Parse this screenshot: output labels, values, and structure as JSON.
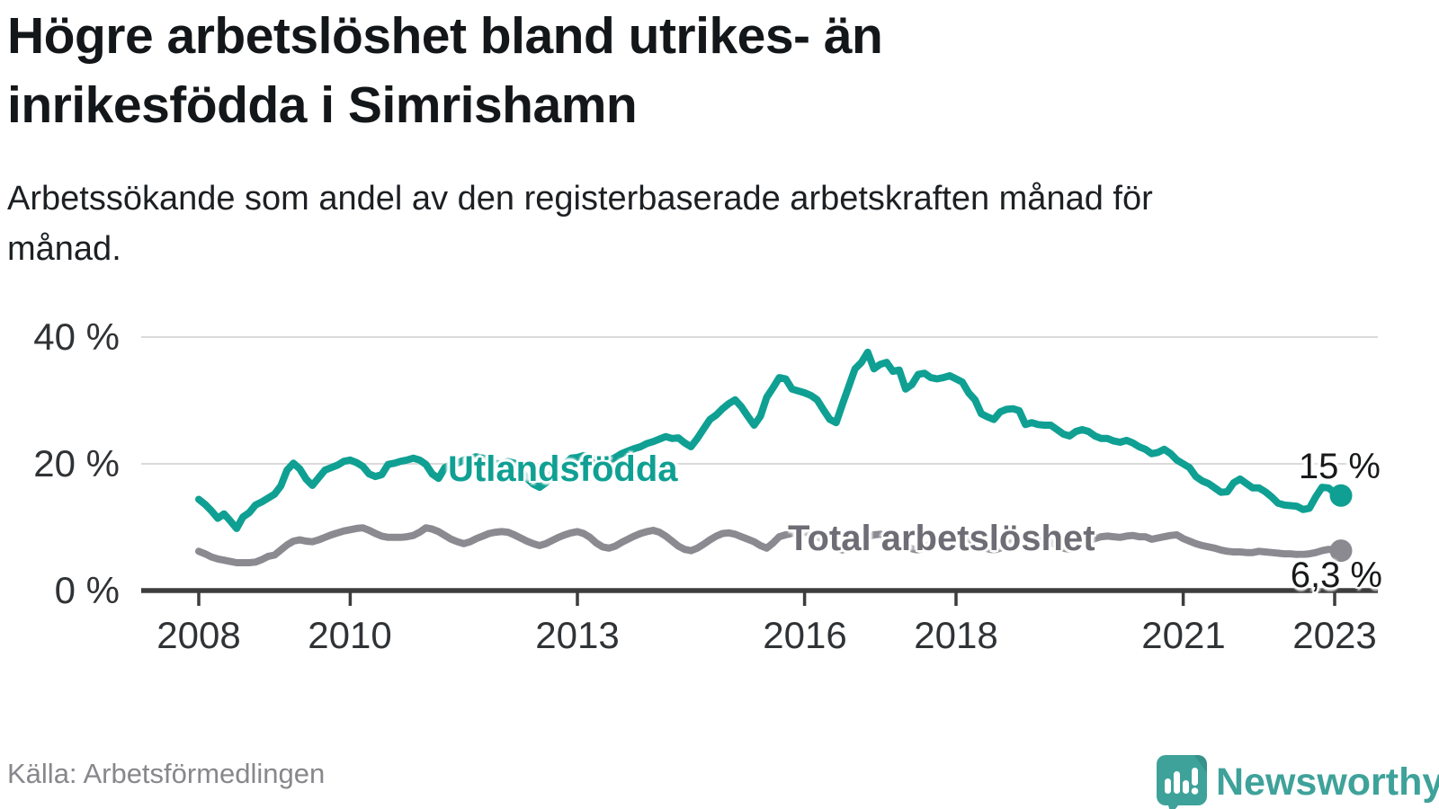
{
  "header": {
    "title": "Högre arbetslöshet bland utrikes- än inrikesfödda i Simrishamn",
    "subtitle": "Arbetssökande som andel av den registerbaserade arbetskraften månad för månad."
  },
  "footer": {
    "source": "Källa: Arbetsförmedlingen",
    "brand": "Newsworthy",
    "brand_color": "#3ea29a",
    "logo_icon": "newsworthy-speech-bubble-chart-icon"
  },
  "chart_data": {
    "type": "line",
    "title": "Högre arbetslöshet bland utrikes- än inrikesfödda i Simrishamn",
    "subtitle": "Arbetssökande som andel av den registerbaserade arbetskraften månad för månad.",
    "x_unit": "month",
    "x_start": "2008-01",
    "x_end": "2023-02",
    "ylim": [
      0,
      42
    ],
    "grid": "horizontal",
    "legend": "inline-labels",
    "axis_color": "#3d3d3d",
    "grid_color": "#dadada",
    "y_ticks": [
      {
        "value": 0,
        "label": "0 %"
      },
      {
        "value": 20,
        "label": "20 %"
      },
      {
        "value": 40,
        "label": "40 %"
      }
    ],
    "x_ticks": [
      {
        "year": 2008,
        "label": "2008"
      },
      {
        "year": 2010,
        "label": "2010"
      },
      {
        "year": 2013,
        "label": "2013"
      },
      {
        "year": 2016,
        "label": "2016"
      },
      {
        "year": 2018,
        "label": "2018"
      },
      {
        "year": 2021,
        "label": "2021"
      },
      {
        "year": 2023,
        "label": "2023"
      }
    ],
    "series": [
      {
        "id": "utlandsfodda",
        "name": "Utlandsfödda",
        "color": "#0fa093",
        "end_label": "15 %",
        "end_value": 15.0,
        "values": [
          14.4,
          13.6,
          12.6,
          11.4,
          12.1,
          11.0,
          9.8,
          11.6,
          12.3,
          13.5,
          14.0,
          14.6,
          15.2,
          16.5,
          19.0,
          20.1,
          19.2,
          17.6,
          16.6,
          17.8,
          19.0,
          19.4,
          19.8,
          20.4,
          20.6,
          20.2,
          19.6,
          18.4,
          18.0,
          18.3,
          19.9,
          20.1,
          20.4,
          20.6,
          20.9,
          20.6,
          19.9,
          18.4,
          17.7,
          19.4,
          19.9,
          20.1,
          20.6,
          20.9,
          21.1,
          20.9,
          20.6,
          20.1,
          19.9,
          20.4,
          20.1,
          19.0,
          17.7,
          16.8,
          16.3,
          17.0,
          18.5,
          19.4,
          19.9,
          20.9,
          21.0,
          21.3,
          21.0,
          20.5,
          20.2,
          20.5,
          21.0,
          21.6,
          22.0,
          22.4,
          22.7,
          23.2,
          23.5,
          23.9,
          24.3,
          24.0,
          24.1,
          23.3,
          22.7,
          24.0,
          25.5,
          27.0,
          27.7,
          28.7,
          29.5,
          30.1,
          29.0,
          27.5,
          26.1,
          27.5,
          30.5,
          32.0,
          33.6,
          33.4,
          31.8,
          31.5,
          31.2,
          30.8,
          30.1,
          28.5,
          27.0,
          26.5,
          29.4,
          32.2,
          35.0,
          36.0,
          37.6,
          35.0,
          35.7,
          36.0,
          34.6,
          34.8,
          31.8,
          32.5,
          34.1,
          34.3,
          33.6,
          33.4,
          33.6,
          33.9,
          33.4,
          32.9,
          31.2,
          30.1,
          27.9,
          27.4,
          27.0,
          28.2,
          28.6,
          28.7,
          28.4,
          26.2,
          26.5,
          26.2,
          26.1,
          26.1,
          25.4,
          24.7,
          24.4,
          25.1,
          25.4,
          25.1,
          24.4,
          24.0,
          24.0,
          23.6,
          23.4,
          23.7,
          23.3,
          22.7,
          22.3,
          21.6,
          21.8,
          22.3,
          21.6,
          20.6,
          20.0,
          19.4,
          18.0,
          17.3,
          16.9,
          16.2,
          15.5,
          15.6,
          17.0,
          17.6,
          16.9,
          16.2,
          16.2,
          15.6,
          14.8,
          13.8,
          13.5,
          13.4,
          13.3,
          12.8,
          13.0,
          14.8,
          16.3,
          16.2,
          15.4,
          15.0
        ]
      },
      {
        "id": "total",
        "name": "Total arbetslöshet",
        "color": "#8b8a91",
        "end_label": "6,3 %",
        "end_value": 6.3,
        "values": [
          6.2,
          5.8,
          5.3,
          5.0,
          4.8,
          4.6,
          4.4,
          4.4,
          4.4,
          4.5,
          4.9,
          5.4,
          5.6,
          6.4,
          7.2,
          7.8,
          8.0,
          7.8,
          7.7,
          8.0,
          8.4,
          8.8,
          9.1,
          9.4,
          9.6,
          9.8,
          9.9,
          9.5,
          9.0,
          8.6,
          8.4,
          8.4,
          8.4,
          8.5,
          8.7,
          9.2,
          9.9,
          9.7,
          9.3,
          8.7,
          8.1,
          7.7,
          7.4,
          7.7,
          8.2,
          8.6,
          9.0,
          9.2,
          9.3,
          9.2,
          8.8,
          8.3,
          7.8,
          7.4,
          7.1,
          7.4,
          7.9,
          8.4,
          8.8,
          9.1,
          9.3,
          9.0,
          8.4,
          7.5,
          6.9,
          6.7,
          7.0,
          7.6,
          8.1,
          8.6,
          9.0,
          9.3,
          9.5,
          9.2,
          8.6,
          7.8,
          7.0,
          6.5,
          6.3,
          6.7,
          7.3,
          8.0,
          8.6,
          9.0,
          9.1,
          8.9,
          8.5,
          8.1,
          7.7,
          7.1,
          6.7,
          7.5,
          8.5,
          8.8,
          9.0,
          9.2,
          9.2,
          9.0,
          8.6,
          8.0,
          7.3,
          6.7,
          6.4,
          6.8,
          7.4,
          8.0,
          8.5,
          8.8,
          8.9,
          8.7,
          8.3,
          7.7,
          7.1,
          6.6,
          6.4,
          6.8,
          7.4,
          7.9,
          8.4,
          8.7,
          8.8,
          8.6,
          8.2,
          7.6,
          7.0,
          6.6,
          6.4,
          6.7,
          7.2,
          7.7,
          8.2,
          8.5,
          8.6,
          8.4,
          8.1,
          7.6,
          7.1,
          6.7,
          6.5,
          6.8,
          7.3,
          7.8,
          8.2,
          8.5,
          8.6,
          8.5,
          8.4,
          8.6,
          8.7,
          8.5,
          8.5,
          8.1,
          8.3,
          8.5,
          8.7,
          8.8,
          8.2,
          7.8,
          7.4,
          7.1,
          6.9,
          6.7,
          6.4,
          6.2,
          6.1,
          6.1,
          6.0,
          6.0,
          6.2,
          6.1,
          6.0,
          5.9,
          5.8,
          5.8,
          5.7,
          5.7,
          5.8,
          6.0,
          6.3,
          6.5,
          6.5,
          6.3
        ]
      }
    ]
  }
}
